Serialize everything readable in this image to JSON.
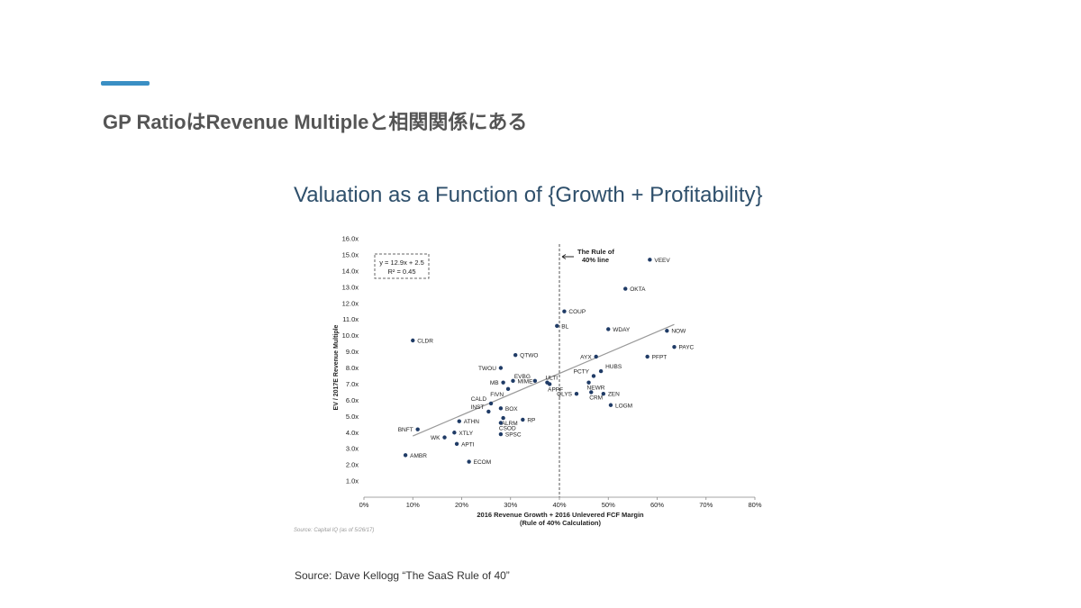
{
  "slide": {
    "title": "GP RatioはRevenue Multipleと相関関係にある",
    "accent_color": "#3a8fc4",
    "source_small": "Source: Capital IQ (as of 5/26/17)",
    "source_main": "Source: Dave Kellogg “The SaaS Rule of 40”"
  },
  "chart_data": {
    "type": "scatter",
    "title": "Valuation as a Function of {Growth + Profitability}",
    "xlabel_line1": "2016 Revenue Growth + 2016 Unlevered FCF Margin",
    "xlabel_line2": "(Rule of 40% Calculation)",
    "ylabel": "EV / 2017E Revenue Multiple",
    "xlim": [
      0,
      80
    ],
    "ylim": [
      0,
      16
    ],
    "x_ticks": [
      0,
      10,
      20,
      30,
      40,
      50,
      60,
      70,
      80
    ],
    "x_tick_labels": [
      "0%",
      "10%",
      "20%",
      "30%",
      "40%",
      "50%",
      "60%",
      "70%",
      "80%"
    ],
    "y_ticks": [
      1,
      2,
      3,
      4,
      5,
      6,
      7,
      8,
      9,
      10,
      11,
      12,
      13,
      14,
      15,
      16
    ],
    "y_tick_labels": [
      "1.0x",
      "2.0x",
      "3.0x",
      "4.0x",
      "5.0x",
      "6.0x",
      "7.0x",
      "8.0x",
      "9.0x",
      "10.0x",
      "11.0x",
      "12.0x",
      "13.0x",
      "14.0x",
      "15.0x",
      "16.0x"
    ],
    "point_color": "#1f3b66",
    "trendline": {
      "slope": 12.9,
      "intercept": 2.5,
      "x_range": [
        10,
        63.5
      ],
      "color": "#999999"
    },
    "equation": {
      "line1": "y = 12.9x + 2.5",
      "line2": "R² = 0.45"
    },
    "rule_of_40": {
      "x": 40,
      "label_line1": "The Rule of",
      "label_line2": "40% line"
    },
    "points": [
      {
        "label": "VEEV",
        "x": 58.5,
        "y": 14.7
      },
      {
        "label": "OKTA",
        "x": 53.5,
        "y": 12.9
      },
      {
        "label": "COUP",
        "x": 41,
        "y": 11.5
      },
      {
        "label": "BL",
        "x": 39.5,
        "y": 10.6
      },
      {
        "label": "WDAY",
        "x": 50,
        "y": 10.4
      },
      {
        "label": "NOW",
        "x": 62,
        "y": 10.3
      },
      {
        "label": "CLDR",
        "x": 10,
        "y": 9.7
      },
      {
        "label": "PAYC",
        "x": 63.5,
        "y": 9.3
      },
      {
        "label": "QTWO",
        "x": 31,
        "y": 8.8
      },
      {
        "label": "AYX",
        "x": 47.5,
        "y": 8.7
      },
      {
        "label": "PFPT",
        "x": 58,
        "y": 8.7
      },
      {
        "label": "TWOU",
        "x": 28,
        "y": 8.0
      },
      {
        "label": "HUBS",
        "x": 48.5,
        "y": 7.8
      },
      {
        "label": "PCTY",
        "x": 47,
        "y": 7.5
      },
      {
        "label": "EVBG",
        "x": 35,
        "y": 7.2
      },
      {
        "label": "ULTI",
        "x": 37.5,
        "y": 7.1
      },
      {
        "label": "MB",
        "x": 28.5,
        "y": 7.1
      },
      {
        "label": "MIME",
        "x": 30.5,
        "y": 7.2
      },
      {
        "label": "NEWR",
        "x": 46,
        "y": 7.1
      },
      {
        "label": "APPF",
        "x": 38,
        "y": 7.0
      },
      {
        "label": "FIVN",
        "x": 29.5,
        "y": 6.7
      },
      {
        "label": "CRM",
        "x": 46.5,
        "y": 6.5
      },
      {
        "label": "QLYS",
        "x": 43.5,
        "y": 6.4
      },
      {
        "label": "ZEN",
        "x": 49,
        "y": 6.4
      },
      {
        "label": "CALD",
        "x": 26,
        "y": 5.8
      },
      {
        "label": "LOGM",
        "x": 50.5,
        "y": 5.7
      },
      {
        "label": "BOX",
        "x": 28,
        "y": 5.5
      },
      {
        "label": "INST",
        "x": 25.5,
        "y": 5.3
      },
      {
        "label": "ALRM",
        "x": 28.5,
        "y": 4.9
      },
      {
        "label": "RP",
        "x": 32.5,
        "y": 4.8
      },
      {
        "label": "ATHN",
        "x": 19.5,
        "y": 4.7
      },
      {
        "label": "CSOD",
        "x": 28,
        "y": 4.6
      },
      {
        "label": "BNFT",
        "x": 11,
        "y": 4.2
      },
      {
        "label": "XTLY",
        "x": 18.5,
        "y": 4.0
      },
      {
        "label": "SPSC",
        "x": 28,
        "y": 3.9
      },
      {
        "label": "WK",
        "x": 16.5,
        "y": 3.7
      },
      {
        "label": "APTI",
        "x": 19,
        "y": 3.3
      },
      {
        "label": "AMBR",
        "x": 8.5,
        "y": 2.6
      },
      {
        "label": "ECOM",
        "x": 21.5,
        "y": 2.2
      }
    ]
  }
}
